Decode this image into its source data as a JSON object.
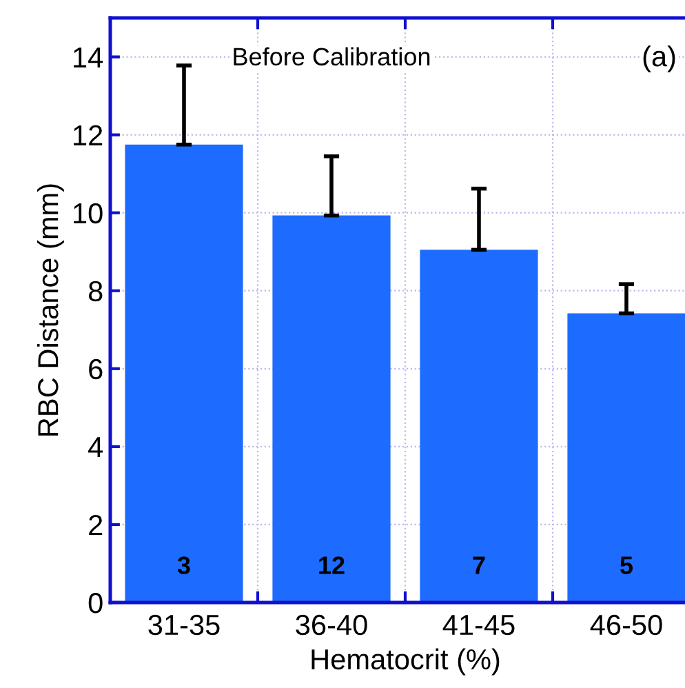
{
  "chart_data": {
    "type": "bar",
    "xlabel": "Hematocrit (%)",
    "ylabel": "RBC Distance (mm)",
    "categories": [
      "31-35",
      "36-40",
      "41-45",
      "46-50"
    ],
    "series": [
      {
        "color": "#1e6cff",
        "values": [
          11.75,
          9.93,
          9.05,
          7.42
        ],
        "errors": [
          [
            11.75,
            13.78
          ],
          [
            9.93,
            11.45
          ],
          [
            9.05,
            10.62
          ],
          [
            7.42,
            8.17
          ]
        ]
      }
    ],
    "ylim": [
      0,
      15
    ],
    "yticks": [
      0,
      2,
      4,
      6,
      8,
      10,
      12,
      14
    ],
    "grid": true,
    "annotations": [
      "Before Calibration",
      "(a)",
      "3",
      "12",
      "7",
      "5"
    ]
  }
}
